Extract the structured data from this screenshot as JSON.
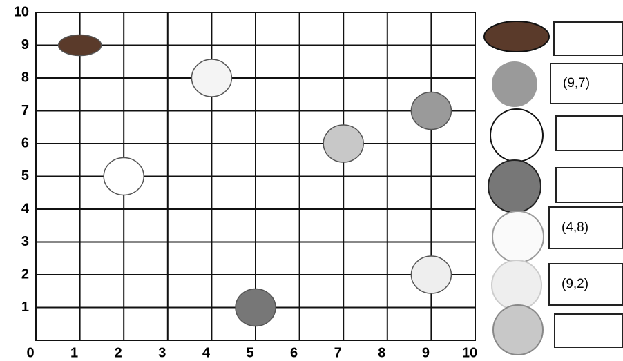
{
  "chart_data": {
    "type": "scatter",
    "x": [
      1,
      4,
      9,
      7,
      2,
      9,
      5
    ],
    "y": [
      9,
      8,
      7,
      6,
      5,
      2,
      1
    ],
    "colors": [
      "#5a3a2a",
      "#f4f4f4",
      "#9a9a9a",
      "#c8c8c8",
      "#ffffff",
      "#eeeeee",
      "#777777"
    ],
    "xlim": [
      0,
      10
    ],
    "ylim": [
      0,
      10
    ],
    "xticks": [
      0,
      1,
      2,
      3,
      4,
      5,
      6,
      7,
      8,
      9,
      10
    ],
    "yticks": [
      1,
      2,
      3,
      4,
      5,
      6,
      7,
      8,
      9,
      10
    ],
    "grid": true
  },
  "answers": [
    null,
    "(9,7)",
    null,
    null,
    "(4,8)",
    "(9,2)",
    null
  ]
}
